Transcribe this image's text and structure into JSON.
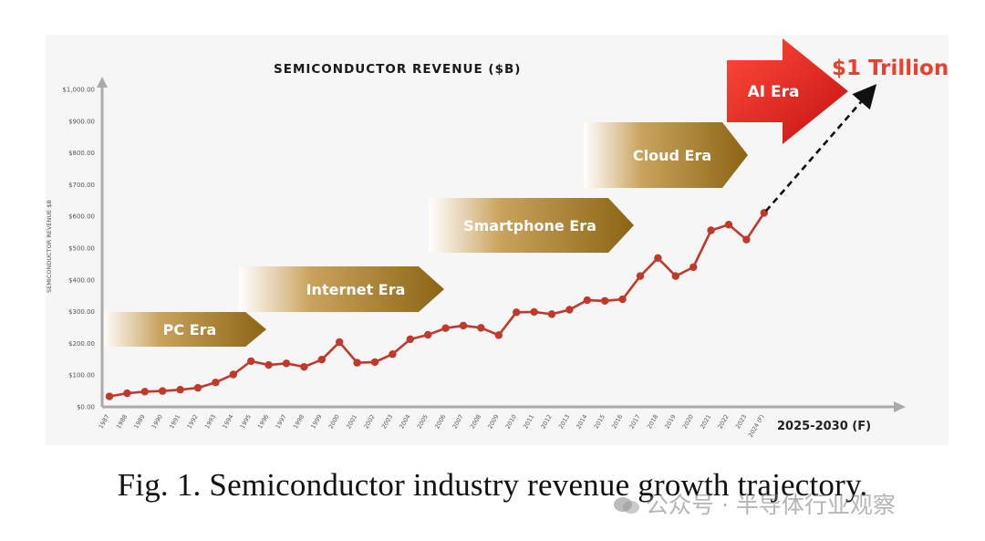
{
  "chart_data": {
    "type": "line",
    "title": "SEMICONDUCTOR REVENUE ($B)",
    "ylabel": "SEMICONDUCTOR REVENUE $B",
    "ylim": [
      0,
      1000
    ],
    "y_ticks": [
      "$0.00",
      "$100.00",
      "$200.00",
      "$300.00",
      "$400.00",
      "$500.00",
      "$600.00",
      "$700.00",
      "$800.00",
      "$900.00",
      "$1,000.00"
    ],
    "grid": false,
    "x_tail_label": "2025-2030 (F)",
    "series": [
      {
        "color": "#c0392b",
        "x": [
          "1987",
          "1988",
          "1989",
          "1990",
          "1991",
          "1992",
          "1993",
          "1994",
          "1995",
          "1996",
          "1997",
          "1998",
          "1999",
          "2000",
          "2001",
          "2002",
          "2003",
          "2004",
          "2005",
          "2006",
          "2007",
          "2008",
          "2009",
          "2010",
          "2011",
          "2012",
          "2013",
          "2014",
          "2015",
          "2016",
          "2017",
          "2018",
          "2019",
          "2020",
          "2021",
          "2022",
          "2023",
          "2024 (F)"
        ],
        "values": [
          33,
          43,
          48,
          50,
          54,
          60,
          77,
          102,
          144,
          132,
          137,
          126,
          149,
          204,
          139,
          141,
          166,
          213,
          227,
          248,
          256,
          249,
          226,
          298,
          299,
          292,
          306,
          336,
          334,
          339,
          412,
          469,
          412,
          440,
          556,
          574,
          527,
          611
        ]
      }
    ],
    "projection": {
      "from": "2024 (F)",
      "to_value": 1000,
      "label": "$1 Trillion",
      "style": "dashed"
    },
    "eras": [
      {
        "label": "PC Era",
        "color": "#b08a3a"
      },
      {
        "label": "Internet Era",
        "color": "#b08a3a"
      },
      {
        "label": "Smartphone Era",
        "color": "#b08a3a"
      },
      {
        "label": "Cloud Era",
        "color": "#b08a3a"
      },
      {
        "label": "AI Era",
        "color": "#e0302a"
      }
    ],
    "accent_color": "#e8402e"
  },
  "caption": "Fig. 1. Semiconductor industry revenue growth trajectory.",
  "watermark": "公众号 · 半导体行业观察"
}
